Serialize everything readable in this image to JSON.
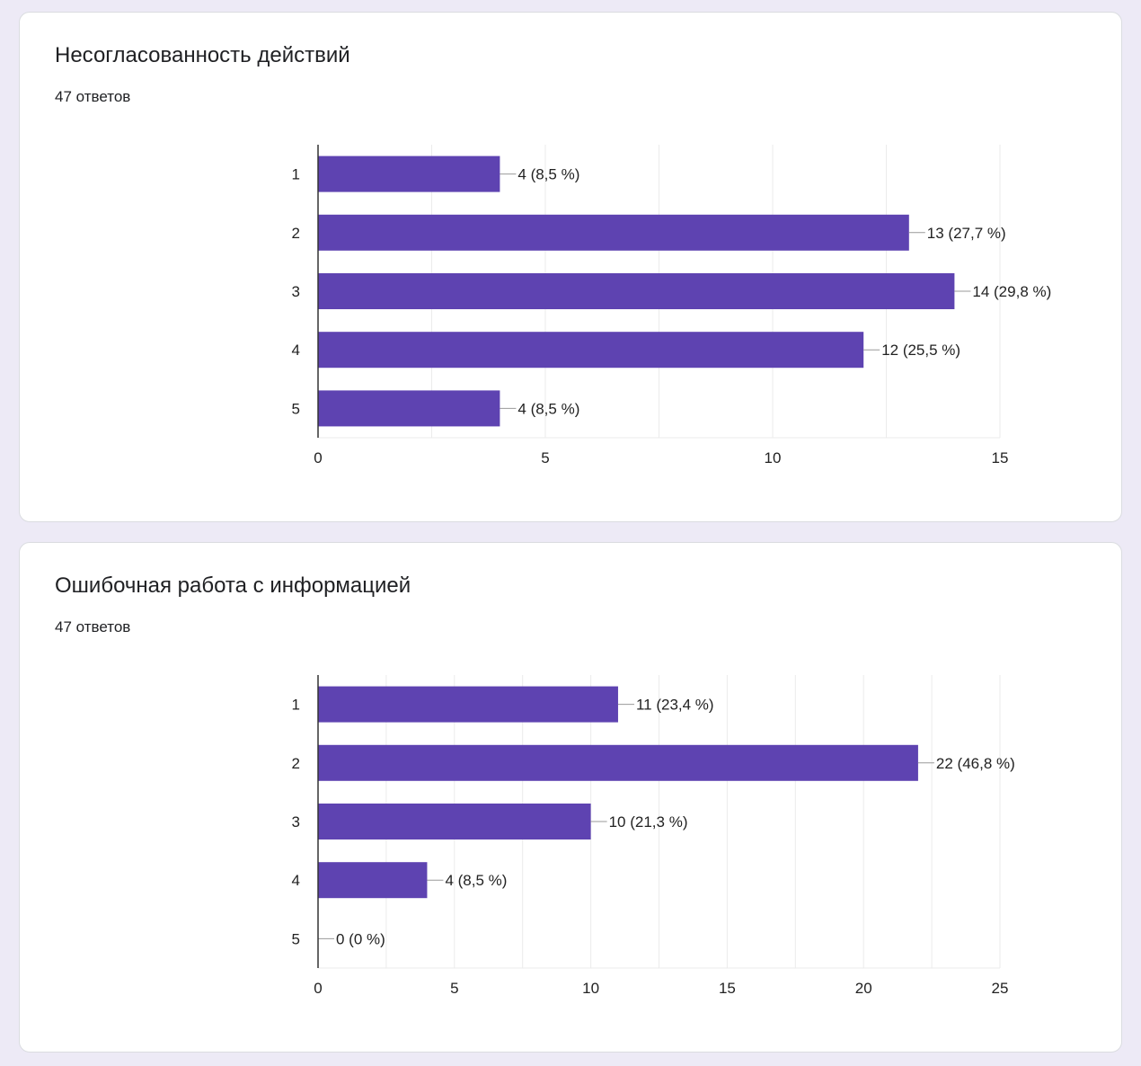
{
  "colors": {
    "bar": "#5e43b1",
    "grid": "#ebebeb",
    "axis": "#333333",
    "leader": "#999999"
  },
  "chart_data": [
    {
      "type": "bar",
      "orientation": "horizontal",
      "title": "Несогласованность действий",
      "subtitle": "47 ответов",
      "categories": [
        "1",
        "2",
        "3",
        "4",
        "5"
      ],
      "values": [
        4,
        13,
        14,
        12,
        4
      ],
      "data_labels": [
        "4 (8,5 %)",
        "13 (27,7 %)",
        "14 (29,8 %)",
        "12 (25,5 %)",
        "4 (8,5 %)"
      ],
      "xlim": [
        0,
        15
      ],
      "x_tick_values": [
        0,
        5,
        10,
        15
      ],
      "x_tick_labels": [
        "0",
        "5",
        "10",
        "15"
      ],
      "grid_values": [
        2.5,
        5,
        7.5,
        10,
        12.5,
        15
      ],
      "grid": true,
      "legend": "none"
    },
    {
      "type": "bar",
      "orientation": "horizontal",
      "title": "Ошибочная работа с информацией",
      "subtitle": "47 ответов",
      "categories": [
        "1",
        "2",
        "3",
        "4",
        "5"
      ],
      "values": [
        11,
        22,
        10,
        4,
        0
      ],
      "data_labels": [
        "11 (23,4 %)",
        "22 (46,8 %)",
        "10 (21,3 %)",
        "4 (8,5 %)",
        "0 (0 %)"
      ],
      "xlim": [
        0,
        25
      ],
      "x_tick_values": [
        0,
        5,
        10,
        15,
        20,
        25
      ],
      "x_tick_labels": [
        "0",
        "5",
        "10",
        "15",
        "20",
        "25"
      ],
      "grid_values": [
        2.5,
        5,
        7.5,
        10,
        12.5,
        15,
        17.5,
        20,
        22.5,
        25
      ],
      "grid": true,
      "legend": "none"
    }
  ]
}
